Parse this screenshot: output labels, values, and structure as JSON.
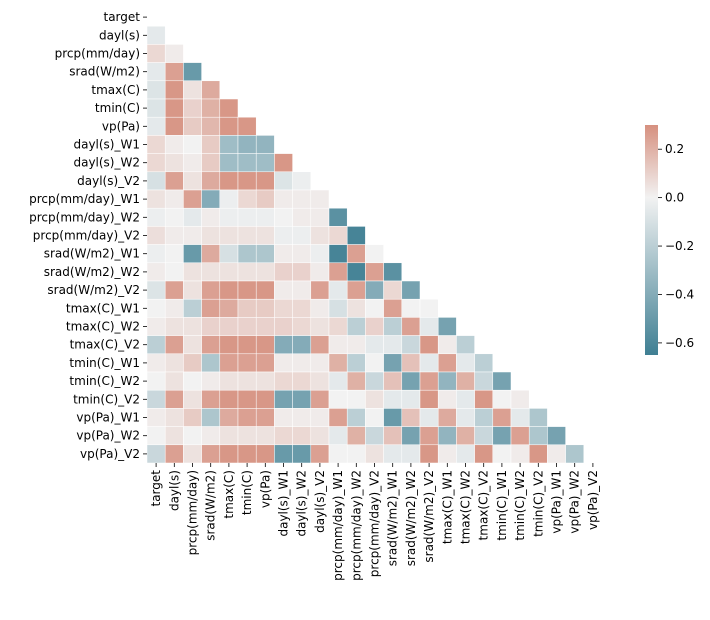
{
  "chart_data": {
    "type": "heatmap",
    "title": "",
    "xlabel": "",
    "ylabel": "",
    "mask": "upper-triangle",
    "variables": [
      "target",
      "dayl(s)",
      "prcp(mm/day)",
      "srad(W/m2)",
      "tmax(C)",
      "tmin(C)",
      "vp(Pa)",
      "dayl(s)_W1",
      "dayl(s)_W2",
      "dayl(s)_V2",
      "prcp(mm/day)_W1",
      "prcp(mm/day)_W2",
      "prcp(mm/day)_V2",
      "srad(W/m2)_W1",
      "srad(W/m2)_W2",
      "srad(W/m2)_V2",
      "tmax(C)_W1",
      "tmax(C)_W2",
      "tmax(C)_V2",
      "tmin(C)_W1",
      "tmin(C)_W2",
      "tmin(C)_V2",
      "vp(Pa)_W1",
      "vp(Pa)_W2",
      "vp(Pa)_V2"
    ],
    "lower_triangle_rows": [
      [],
      [
        -0.05
      ],
      [
        0.08,
        0.02
      ],
      [
        -0.05,
        0.25,
        -0.5
      ],
      [
        -0.08,
        0.28,
        0.05,
        0.22
      ],
      [
        -0.08,
        0.28,
        0.1,
        0.2,
        0.28
      ],
      [
        -0.05,
        0.28,
        0.12,
        0.18,
        0.28,
        0.28
      ],
      [
        0.08,
        0.02,
        0.0,
        0.12,
        -0.3,
        -0.35,
        -0.35
      ],
      [
        0.08,
        0.05,
        0.02,
        0.12,
        -0.3,
        -0.3,
        -0.3,
        0.28
      ],
      [
        -0.1,
        0.25,
        0.05,
        0.22,
        0.28,
        0.28,
        0.28,
        -0.08,
        -0.02
      ],
      [
        0.05,
        0.02,
        0.25,
        -0.4,
        -0.02,
        0.08,
        0.12,
        0.02,
        0.02,
        0.02
      ],
      [
        -0.02,
        0.0,
        -0.05,
        0.02,
        -0.02,
        -0.02,
        -0.02,
        0.0,
        0.02,
        0.02,
        -0.55
      ],
      [
        0.06,
        0.02,
        0.02,
        0.05,
        0.05,
        0.05,
        0.05,
        -0.02,
        -0.02,
        0.05,
        0.08,
        -0.62
      ],
      [
        -0.02,
        0.0,
        -0.5,
        0.22,
        -0.1,
        -0.25,
        -0.25,
        0.02,
        0.02,
        -0.02,
        -0.62,
        0.25,
        0.0
      ],
      [
        0.02,
        0.0,
        0.05,
        0.05,
        0.05,
        0.05,
        0.05,
        0.1,
        0.1,
        0.02,
        0.25,
        -0.62,
        0.25,
        -0.55
      ],
      [
        -0.08,
        0.25,
        0.05,
        0.25,
        0.28,
        0.28,
        0.28,
        0.02,
        0.02,
        0.25,
        -0.05,
        0.25,
        -0.4,
        0.08,
        -0.45
      ],
      [
        0.0,
        0.02,
        -0.2,
        0.25,
        0.22,
        0.12,
        0.12,
        0.08,
        0.08,
        0.02,
        -0.1,
        0.05,
        0.0,
        0.25,
        0.0,
        0.0
      ],
      [
        0.02,
        0.05,
        0.05,
        0.1,
        0.1,
        0.1,
        0.1,
        0.1,
        0.08,
        0.05,
        0.08,
        -0.2,
        0.1,
        -0.2,
        0.25,
        -0.05,
        -0.45
      ],
      [
        -0.2,
        0.25,
        0.05,
        0.25,
        0.28,
        0.28,
        0.28,
        -0.4,
        -0.4,
        0.25,
        0.02,
        0.02,
        -0.05,
        -0.05,
        -0.15,
        0.28,
        0.02,
        -0.2
      ],
      [
        0.02,
        0.05,
        0.12,
        -0.25,
        0.25,
        0.25,
        0.25,
        0.02,
        0.02,
        0.02,
        0.2,
        -0.2,
        0.0,
        -0.45,
        0.15,
        -0.05,
        0.25,
        -0.05,
        -0.2
      ],
      [
        0.0,
        0.05,
        0.0,
        0.02,
        0.05,
        0.05,
        0.05,
        0.08,
        0.08,
        0.05,
        -0.05,
        0.2,
        -0.15,
        0.15,
        -0.45,
        0.25,
        -0.35,
        0.2,
        -0.15,
        -0.45
      ],
      [
        -0.15,
        0.25,
        0.05,
        0.25,
        0.28,
        0.28,
        0.28,
        -0.45,
        -0.45,
        0.25,
        0.0,
        0.0,
        0.05,
        -0.05,
        -0.05,
        0.28,
        0.02,
        -0.05,
        0.28,
        0.0,
        0.02
      ],
      [
        0.02,
        0.05,
        0.12,
        -0.25,
        0.22,
        0.25,
        0.25,
        0.02,
        0.02,
        0.02,
        0.25,
        -0.2,
        0.0,
        -0.5,
        0.15,
        -0.05,
        0.22,
        -0.05,
        -0.2,
        0.25,
        -0.05,
        -0.25
      ],
      [
        0.0,
        0.05,
        0.0,
        0.02,
        0.05,
        0.05,
        0.05,
        0.08,
        0.08,
        0.05,
        -0.05,
        0.2,
        -0.15,
        0.15,
        -0.45,
        0.25,
        -0.35,
        0.2,
        -0.15,
        -0.45,
        0.25,
        -0.25,
        -0.45
      ],
      [
        -0.15,
        0.25,
        0.05,
        0.25,
        0.28,
        0.28,
        0.28,
        -0.5,
        -0.5,
        0.25,
        0.0,
        0.0,
        0.05,
        -0.05,
        -0.05,
        0.28,
        0.02,
        -0.05,
        0.28,
        0.0,
        0.02,
        0.28,
        0.02,
        -0.25
      ]
    ],
    "vmin": -0.65,
    "vmax": 0.3,
    "colorbar": {
      "ticks": [
        0.2,
        0.0,
        -0.2,
        -0.4,
        -0.6
      ],
      "tick_labels": [
        "0.2",
        "0.0",
        "−0.2",
        "−0.4",
        "−0.6"
      ]
    },
    "colormap": {
      "negative": "#3f7f93",
      "center": "#f2f2f2",
      "positive": "#d6907f"
    },
    "grid_line_color": "#ffffff"
  }
}
